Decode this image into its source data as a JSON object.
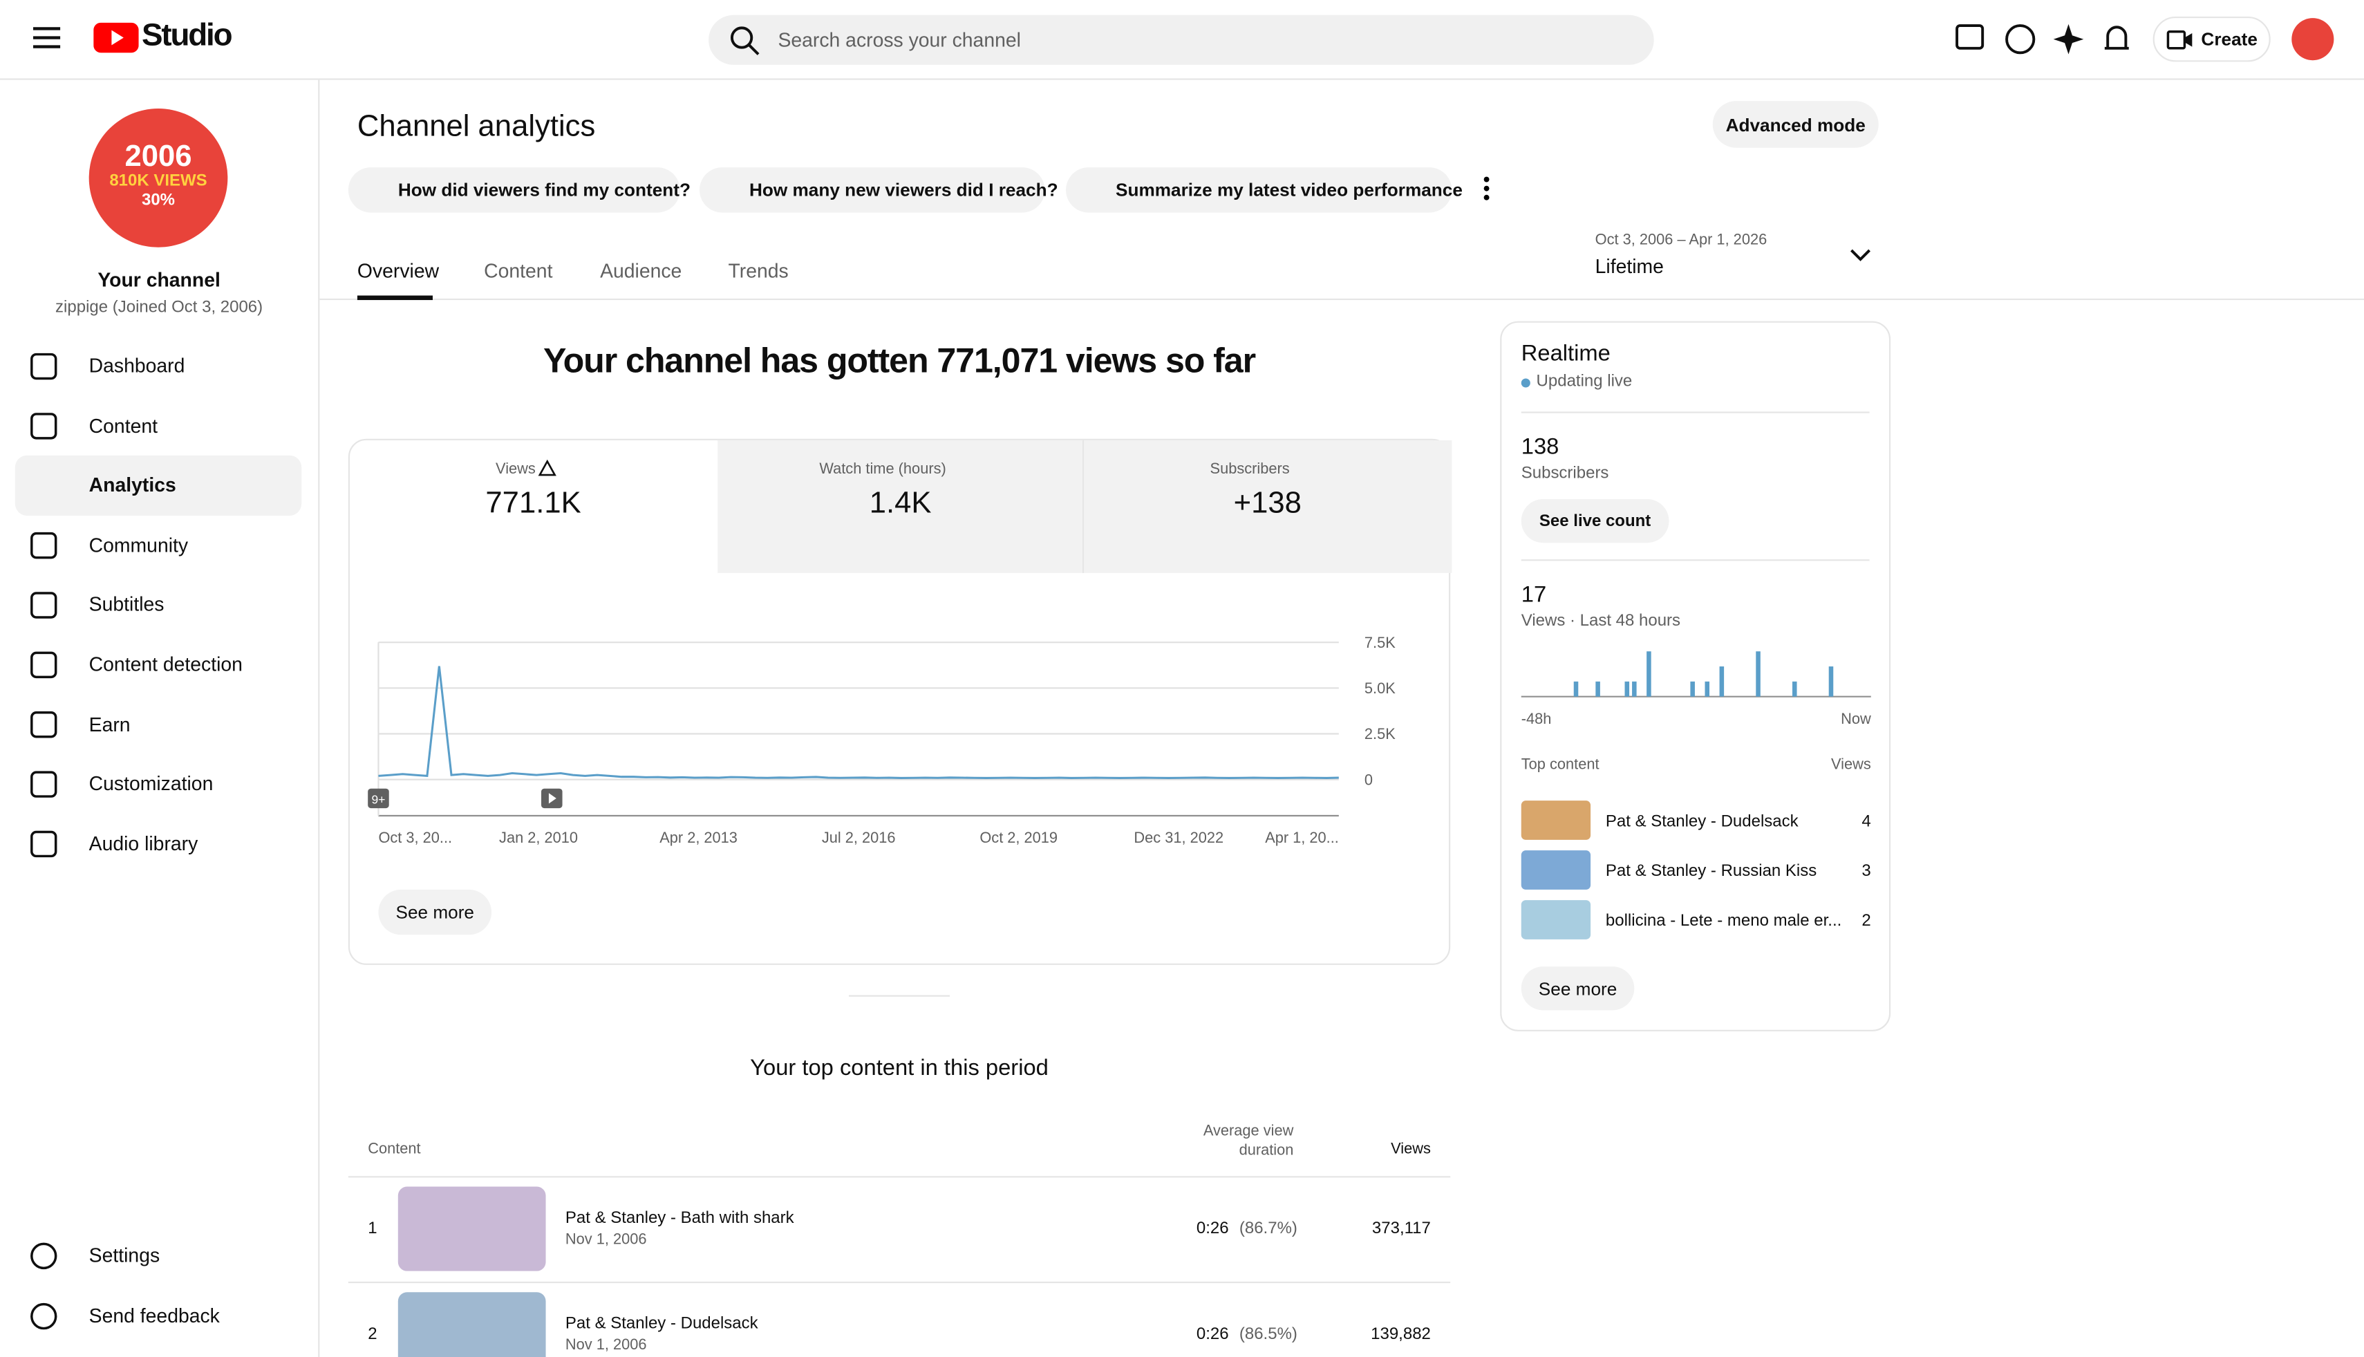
{
  "header": {
    "logo": "Studio",
    "search_placeholder": "Search across your channel",
    "create": "Create"
  },
  "sidebar": {
    "avatar": {
      "line1": "2006",
      "line2": "810K VIEWS",
      "line3": "30%"
    },
    "channel_title": "Your channel",
    "channel_sub": "zippige (Joined Oct 3, 2006)",
    "nav": [
      "Dashboard",
      "Content",
      "Analytics",
      "Community",
      "Subtitles",
      "Content detection",
      "Earn",
      "Customization",
      "Audio library"
    ],
    "footer": [
      "Settings",
      "Send feedback"
    ]
  },
  "page": {
    "title": "Channel analytics",
    "advanced": "Advanced mode",
    "prompts": [
      "How did viewers find my content?",
      "How many new viewers did I reach?",
      "Summarize my latest video performance"
    ],
    "tabs": [
      "Overview",
      "Content",
      "Audience",
      "Trends"
    ],
    "date_range": "Oct 3, 2006 – Apr 1, 2026",
    "period": "Lifetime",
    "headline": "Your channel has gotten 771,071 views so far",
    "metrics": [
      {
        "label": "Views",
        "value": "771.1K"
      },
      {
        "label": "Watch time (hours)",
        "value": "1.4K"
      },
      {
        "label": "Subscribers",
        "value": "+138"
      }
    ],
    "see_more": "See more"
  },
  "chart_data": [
    {
      "type": "line",
      "color": "#5a9ec9",
      "values": [
        200,
        250,
        300,
        250,
        200,
        6200,
        250,
        300,
        250,
        200,
        250,
        350,
        300,
        250,
        300,
        350,
        250,
        200,
        250,
        200,
        150,
        150,
        120,
        130,
        110,
        120,
        100,
        110,
        100,
        130,
        120,
        100,
        90,
        110,
        100,
        120,
        140,
        100,
        90,
        100,
        110,
        90,
        100,
        80,
        90,
        100,
        90,
        110,
        100,
        90,
        80,
        90,
        100,
        90,
        80,
        90,
        100,
        80,
        90,
        100,
        90,
        80,
        90,
        100,
        90,
        80,
        90,
        100,
        110,
        90,
        80,
        90,
        100,
        90,
        80,
        90,
        100,
        90,
        80,
        100
      ],
      "ylim": [
        0,
        7500
      ],
      "yticks": [
        0,
        {
          "value": 2500,
          "label": "2.5K"
        },
        {
          "value": 5000,
          "label": "5.0K"
        },
        {
          "value": 7500,
          "label": "7.5K"
        }
      ],
      "grid": true,
      "x_labels": [
        "Oct 3, 20...",
        "Jan 2, 2010",
        "Apr 2, 2013",
        "Jul 2, 2016",
        "Oct 2, 2019",
        "Dec 31, 2022",
        "Apr 1, 20..."
      ],
      "markers": [
        "9+"
      ]
    },
    {
      "type": "bar",
      "color": "#5a9ec9",
      "values": [
        0,
        0,
        0,
        0,
        0,
        0,
        0,
        1,
        0,
        0,
        1,
        0,
        0,
        0,
        1,
        1,
        0,
        3,
        0,
        0,
        0,
        0,
        0,
        1,
        0,
        1,
        0,
        2,
        0,
        0,
        0,
        0,
        3,
        0,
        0,
        0,
        0,
        1,
        0,
        0,
        0,
        0,
        2,
        0,
        0,
        0,
        0,
        0
      ],
      "ylim": [
        0,
        3
      ],
      "x_start": "-48h",
      "x_end": "Now"
    }
  ],
  "top_content": {
    "title": "Your top content in this period",
    "columns": [
      "Content",
      "Average view duration",
      "Views"
    ],
    "rows": [
      {
        "rank": "1",
        "title": "Pat & Stanley - Bath with shark",
        "date": "Nov 1, 2006",
        "duration": "0:26",
        "percent": "(86.7%)",
        "views": "373,117"
      },
      {
        "rank": "2",
        "title": "Pat & Stanley - Dudelsack",
        "date": "Nov 1, 2006",
        "duration": "0:26",
        "percent": "(86.5%)",
        "views": "139,882"
      }
    ]
  },
  "realtime": {
    "title": "Realtime",
    "status": "Updating live",
    "subscribers": "138",
    "subscribers_label": "Subscribers",
    "live_count": "See live count",
    "views": "17",
    "views_label": "Views · Last 48 hours",
    "top_label": "Top content",
    "views_col": "Views",
    "items": [
      {
        "title": "Pat & Stanley - Dudelsack",
        "views": "4"
      },
      {
        "title": "Pat & Stanley - Russian Kiss",
        "views": "3"
      },
      {
        "title": "bollicina - Lete - meno male er...",
        "views": "2"
      }
    ],
    "see_more": "See more"
  }
}
